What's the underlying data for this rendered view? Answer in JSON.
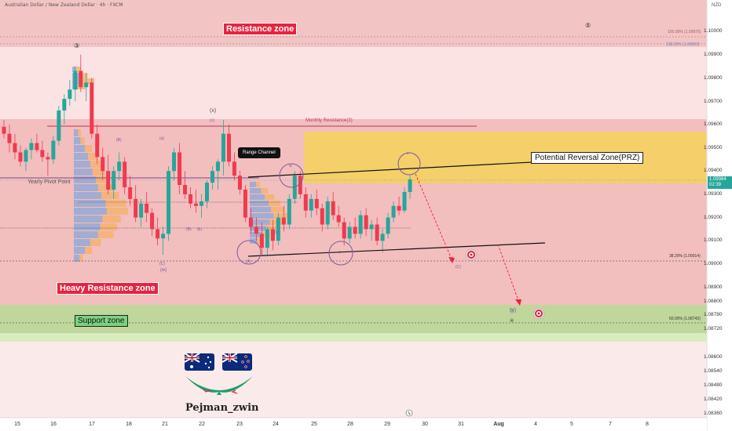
{
  "header": {
    "title": "Australian Dollar / New Zealand Dollar · 4h · FXCM",
    "currency": "NZD"
  },
  "chart_data": {
    "type": "candlestick",
    "title": "Australian Dollar / New Zealand Dollar · 4h · FXCM",
    "y_axis": {
      "unit": "NZD",
      "ticks": [
        "1.10000",
        "1.09900",
        "1.09800",
        "1.09700",
        "1.09600",
        "1.09500",
        "1.09400",
        "1.09300",
        "1.09200",
        "1.09100",
        "1.09000",
        "1.08900",
        "1.08800",
        "1.08780",
        "1.08720",
        "1.08600",
        "1.08540",
        "1.08480",
        "1.08420",
        "1.08360"
      ],
      "current_price": "1.09364",
      "countdown": "02:39"
    },
    "x_axis": {
      "ticks": [
        "15",
        "16",
        "17",
        "18",
        "21",
        "22",
        "23",
        "24",
        "25",
        "28",
        "29",
        "30",
        "31",
        "Aug",
        "4",
        "5",
        "7",
        "8"
      ]
    },
    "candles": [
      {
        "o": 1.0959,
        "h": 1.0962,
        "l": 1.0954,
        "c": 1.0956
      },
      {
        "o": 1.0956,
        "h": 1.096,
        "l": 1.0948,
        "c": 1.0952
      },
      {
        "o": 1.0952,
        "h": 1.0956,
        "l": 1.0945,
        "c": 1.0948
      },
      {
        "o": 1.0948,
        "h": 1.0951,
        "l": 1.0942,
        "c": 1.0944
      },
      {
        "o": 1.0944,
        "h": 1.095,
        "l": 1.094,
        "c": 1.0949
      },
      {
        "o": 1.0949,
        "h": 1.0954,
        "l": 1.0945,
        "c": 1.0952
      },
      {
        "o": 1.0952,
        "h": 1.0956,
        "l": 1.0948,
        "c": 1.0949
      },
      {
        "o": 1.0949,
        "h": 1.0953,
        "l": 1.0944,
        "c": 1.0946
      },
      {
        "o": 1.0946,
        "h": 1.0948,
        "l": 1.0938,
        "c": 1.0945
      },
      {
        "o": 1.0945,
        "h": 1.0955,
        "l": 1.0943,
        "c": 1.0953
      },
      {
        "o": 1.0953,
        "h": 1.0968,
        "l": 1.0951,
        "c": 1.0966
      },
      {
        "o": 1.0966,
        "h": 1.0973,
        "l": 1.096,
        "c": 1.0971
      },
      {
        "o": 1.0971,
        "h": 1.0979,
        "l": 1.0968,
        "c": 1.0975
      },
      {
        "o": 1.0975,
        "h": 1.0985,
        "l": 1.097,
        "c": 1.0983
      },
      {
        "o": 1.0983,
        "h": 1.099,
        "l": 1.0974,
        "c": 1.0976
      },
      {
        "o": 1.0976,
        "h": 1.0982,
        "l": 1.097,
        "c": 1.0978
      },
      {
        "o": 1.0978,
        "h": 1.098,
        "l": 1.0954,
        "c": 1.0956
      },
      {
        "o": 1.0956,
        "h": 1.096,
        "l": 1.0943,
        "c": 1.0946
      },
      {
        "o": 1.0946,
        "h": 1.095,
        "l": 1.0936,
        "c": 1.094
      },
      {
        "o": 1.094,
        "h": 1.0947,
        "l": 1.093,
        "c": 1.0932
      },
      {
        "o": 1.0932,
        "h": 1.0942,
        "l": 1.0928,
        "c": 1.094
      },
      {
        "o": 1.094,
        "h": 1.0948,
        "l": 1.0936,
        "c": 1.0944
      },
      {
        "o": 1.0944,
        "h": 1.0946,
        "l": 1.093,
        "c": 1.0933
      },
      {
        "o": 1.0933,
        "h": 1.0938,
        "l": 1.0925,
        "c": 1.0928
      },
      {
        "o": 1.0928,
        "h": 1.0934,
        "l": 1.0918,
        "c": 1.092
      },
      {
        "o": 1.092,
        "h": 1.0928,
        "l": 1.0916,
        "c": 1.0926
      },
      {
        "o": 1.0926,
        "h": 1.0931,
        "l": 1.0918,
        "c": 1.0922
      },
      {
        "o": 1.0922,
        "h": 1.0924,
        "l": 1.0912,
        "c": 1.0915
      },
      {
        "o": 1.0915,
        "h": 1.092,
        "l": 1.0908,
        "c": 1.0911
      },
      {
        "o": 1.0911,
        "h": 1.0916,
        "l": 1.0904,
        "c": 1.0913
      },
      {
        "o": 1.0913,
        "h": 1.0942,
        "l": 1.091,
        "c": 1.094
      },
      {
        "o": 1.094,
        "h": 1.095,
        "l": 1.0936,
        "c": 1.0948
      },
      {
        "o": 1.0948,
        "h": 1.0952,
        "l": 1.093,
        "c": 1.0934
      },
      {
        "o": 1.0934,
        "h": 1.094,
        "l": 1.0928,
        "c": 1.093
      },
      {
        "o": 1.093,
        "h": 1.0933,
        "l": 1.0924,
        "c": 1.0926
      },
      {
        "o": 1.0926,
        "h": 1.0932,
        "l": 1.0922,
        "c": 1.0925
      },
      {
        "o": 1.0925,
        "h": 1.093,
        "l": 1.092,
        "c": 1.0927
      },
      {
        "o": 1.0927,
        "h": 1.0936,
        "l": 1.0924,
        "c": 1.0935
      },
      {
        "o": 1.0935,
        "h": 1.0942,
        "l": 1.0932,
        "c": 1.094
      },
      {
        "o": 1.094,
        "h": 1.0945,
        "l": 1.0932,
        "c": 1.0944
      },
      {
        "o": 1.0944,
        "h": 1.0962,
        "l": 1.0938,
        "c": 1.0956
      },
      {
        "o": 1.0956,
        "h": 1.096,
        "l": 1.0942,
        "c": 1.0944
      },
      {
        "o": 1.0944,
        "h": 1.0948,
        "l": 1.0936,
        "c": 1.0938
      },
      {
        "o": 1.0938,
        "h": 1.094,
        "l": 1.093,
        "c": 1.0932
      },
      {
        "o": 1.0932,
        "h": 1.0934,
        "l": 1.0918,
        "c": 1.092
      },
      {
        "o": 1.092,
        "h": 1.0924,
        "l": 1.0913,
        "c": 1.0916
      },
      {
        "o": 1.0916,
        "h": 1.092,
        "l": 1.091,
        "c": 1.0913
      },
      {
        "o": 1.0913,
        "h": 1.0918,
        "l": 1.0904,
        "c": 1.0907
      },
      {
        "o": 1.0907,
        "h": 1.0916,
        "l": 1.0904,
        "c": 1.0915
      },
      {
        "o": 1.0915,
        "h": 1.0919,
        "l": 1.0906,
        "c": 1.091
      },
      {
        "o": 1.091,
        "h": 1.0922,
        "l": 1.0908,
        "c": 1.092
      },
      {
        "o": 1.092,
        "h": 1.0925,
        "l": 1.0914,
        "c": 1.0917
      },
      {
        "o": 1.0917,
        "h": 1.093,
        "l": 1.0915,
        "c": 1.0928
      },
      {
        "o": 1.0928,
        "h": 1.094,
        "l": 1.0926,
        "c": 1.0938
      },
      {
        "o": 1.0938,
        "h": 1.094,
        "l": 1.0928,
        "c": 1.093
      },
      {
        "o": 1.093,
        "h": 1.0933,
        "l": 1.092,
        "c": 1.0923
      },
      {
        "o": 1.0923,
        "h": 1.093,
        "l": 1.092,
        "c": 1.0928
      },
      {
        "o": 1.0928,
        "h": 1.0932,
        "l": 1.0921,
        "c": 1.0924
      },
      {
        "o": 1.0924,
        "h": 1.0926,
        "l": 1.0914,
        "c": 1.0917
      },
      {
        "o": 1.0917,
        "h": 1.0929,
        "l": 1.0915,
        "c": 1.0927
      },
      {
        "o": 1.0927,
        "h": 1.0931,
        "l": 1.0919,
        "c": 1.0921
      },
      {
        "o": 1.0921,
        "h": 1.0925,
        "l": 1.0916,
        "c": 1.0918
      },
      {
        "o": 1.0918,
        "h": 1.092,
        "l": 1.0908,
        "c": 1.0911
      },
      {
        "o": 1.0911,
        "h": 1.0918,
        "l": 1.0909,
        "c": 1.0916
      },
      {
        "o": 1.0916,
        "h": 1.092,
        "l": 1.0911,
        "c": 1.0913
      },
      {
        "o": 1.0913,
        "h": 1.0923,
        "l": 1.0911,
        "c": 1.0921
      },
      {
        "o": 1.0921,
        "h": 1.0924,
        "l": 1.0912,
        "c": 1.0915
      },
      {
        "o": 1.0915,
        "h": 1.0919,
        "l": 1.091,
        "c": 1.0917
      },
      {
        "o": 1.0917,
        "h": 1.092,
        "l": 1.0908,
        "c": 1.091
      },
      {
        "o": 1.091,
        "h": 1.0915,
        "l": 1.0905,
        "c": 1.0913
      },
      {
        "o": 1.0913,
        "h": 1.0922,
        "l": 1.0911,
        "c": 1.092
      },
      {
        "o": 1.092,
        "h": 1.0927,
        "l": 1.0918,
        "c": 1.0925
      },
      {
        "o": 1.0925,
        "h": 1.0929,
        "l": 1.0921,
        "c": 1.0923
      },
      {
        "o": 1.0923,
        "h": 1.0933,
        "l": 1.0922,
        "c": 1.0931
      },
      {
        "o": 1.0931,
        "h": 1.0938,
        "l": 1.0928,
        "c": 1.09364
      }
    ],
    "annotations": {
      "resistance_zone": "Resistance zone",
      "heavy_resistance_zone": "Heavy Resistance zone",
      "support_zone": "Support zone",
      "prz": "Potential Reversal Zone(PRZ)",
      "range_channel": "Range Channel",
      "monthly_resistance": "Monthly Resistance(3)",
      "yearly_pivot": "Yearly Pivot Point",
      "fib_100": "100.00% (1.09976)",
      "fib_138": "138.20% (1.09959)",
      "fib_382": "38.20% (1.09014)",
      "fib_50": "50.00% (1.08743)",
      "waves": [
        "③",
        "⑤",
        "(x)",
        "(c)",
        "(w)",
        "(y)",
        "(A)",
        "(B)",
        "(C)",
        "(a)",
        "(b)",
        "(c)",
        "w",
        "x",
        "c",
        "(B)",
        "(C)",
        "(y)",
        "④"
      ]
    },
    "author": "Pejman_zwin"
  }
}
